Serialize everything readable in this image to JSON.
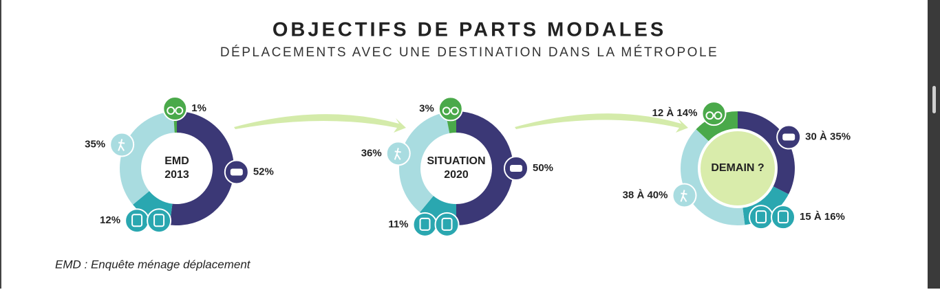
{
  "title": "OBJECTIFS DE PARTS MODALES",
  "subtitle": "DÉPLACEMENTS AVEC UNE DESTINATION DANS LA MÉTROPOLE",
  "footnote": "EMD : Enquête ménage déplacement",
  "chart_data": [
    {
      "type": "donut",
      "center_label": [
        "EMD",
        "2013"
      ],
      "colors": [
        "#3b3876",
        "#2aa7b0",
        "#a9dce0",
        "#4aa94a"
      ],
      "values": [
        52,
        12,
        35,
        1
      ],
      "value_labels": [
        "52%",
        "12%",
        "35%",
        "1%"
      ]
    },
    {
      "type": "donut",
      "center_label": [
        "SITUATION",
        "2020"
      ],
      "colors": [
        "#3b3876",
        "#2aa7b0",
        "#a9dce0",
        "#4aa94a"
      ],
      "values": [
        50,
        11,
        36,
        3
      ],
      "value_labels": [
        "50%",
        "11%",
        "36%",
        "3%"
      ]
    },
    {
      "type": "range-donut",
      "center_label": [
        "DEMAIN ?"
      ],
      "colors": [
        "#3b3876",
        "#2aa7b0",
        "#a9dce0",
        "#4aa94a"
      ],
      "center_color": "#d9ecab",
      "values": [
        [
          30,
          35
        ],
        [
          15,
          16
        ],
        [
          38,
          40
        ],
        [
          12,
          14
        ]
      ],
      "value_labels": [
        "30 À 35%",
        "15 À 16%",
        "38 À 40%",
        "12 À 14%"
      ]
    }
  ]
}
